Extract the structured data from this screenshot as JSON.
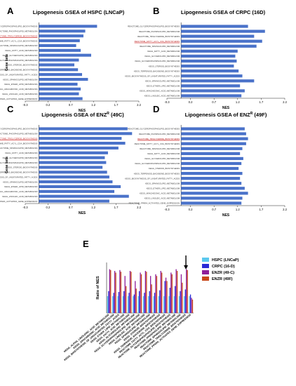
{
  "chart_data": [
    {
      "panel": "A",
      "type": "bar",
      "orientation": "horizontal",
      "title": "Lipogenesis GSEA of HSPC (LNCaP)",
      "xlabel": "NES",
      "ylabel": "Gene sets",
      "xlim": [
        -0.3,
        2.2
      ],
      "xticks": [
        "-0.3",
        "0.2",
        "0.7",
        "1.2",
        "1.7",
        "2.2"
      ],
      "categories": [
        "REACTOME_GLYCEROPHOSPHOLIPID_BIOSYNTHESIS",
        "REACTOME_PHOSPHOLIPID_METABOLISM",
        "REACTOME_TRIGLYCERIDE_BIOSYNTHESIS",
        "REACTOME_FATTY_ACYL_COA_BIOSYNTHESIS",
        "REACTOME_SPHINGOLIPID_METABOLISM",
        "KEGG_FATTY_ACID_METABOLISM",
        "KEGG_GLYCEROLIPID_METABOLISM",
        "KEGG_GLYCEROPHOSPHOLIPID_METABOLISM",
        "KEGG_STEROID_BIOSYNTHESIS",
        "KEGG_TERPENOID_BACKBONE_BIOSYNTHESIS",
        "KEGG_BIOSYNTHESIS_OF_UNSATURATED_FATTY_ACIDS",
        "KEGG_SPHINGOLIPID_METABOLISM",
        "KEGG_ETHER_LIPID_METABOLISM",
        "KEGG_ARACHIDONIC_ACID_METABOLISM",
        "KEGG_LINOLEIC_ACID_METABOLISM",
        "REACTOME_PPARA_ACTIVATES_GENE_EXPRESSION"
      ],
      "values": [
        1.28,
        1.02,
        0.98,
        0.9,
        0.82,
        0.92,
        1.15,
        0.88,
        0.78,
        0.86,
        0.95,
        1.08,
        0.85,
        0.92,
        0.88,
        0.96
      ],
      "highlighted_category_index": 2,
      "bar_color": "#4a72c9",
      "highlight_color": "#d23a3a"
    },
    {
      "panel": "B",
      "type": "bar",
      "orientation": "horizontal",
      "title": "Lipogenesis GSEA of CRPC (16D)",
      "xlabel": "NES",
      "ylabel": "",
      "xlim": [
        -0.3,
        2.2
      ],
      "xticks": [
        "-0.3",
        "0.2",
        "0.7",
        "1.2",
        "1.7",
        "2.2"
      ],
      "categories": [
        "REACTOME_GLYCEROPHOSPHOLIPID_BIOSYNTHESIS",
        "REACTOME_PHOSPHOLIPID_METABOLISM",
        "REACTOME_TRIGLYCERIDE_BIOSYNTHESIS",
        "REACTOME_FATTY_ACYL_COA_BIOSYNTHESIS",
        "REACTOME_SPHINGOLIPID_METABOLISM",
        "KEGG_FATTY_ACID_METABOLISM",
        "KEGG_GLYCEROLIPID_METABOLISM",
        "KEGG_GLYCEROPHOSPHOLIPID_METABOLISM",
        "KEGG_STEROID_BIOSYNTHESIS",
        "KEGG_TERPENOID_BACKBONE_BIOSYNTHESIS",
        "KEGG_BIOSYNTHESIS_OF_UNSATURATED_FATTY_ACIDS",
        "KEGG_SPHINGOLIPID_METABOLISM",
        "KEGG_ETHER_LIPID_METABOLISM",
        "KEGG_ARACHIDONIC_ACID_METABOLISM",
        "KEGG_LINOLEIC_ACID_METABOLISM"
      ],
      "values": [
        1.42,
        1.78,
        1.55,
        1.72,
        1.6,
        1.2,
        1.15,
        1.18,
        1.12,
        1.22,
        1.3,
        1.55,
        1.25,
        1.35,
        1.28
      ],
      "highlighted_category_index": 3,
      "bar_color": "#4a72c9",
      "highlight_color": "#d23a3a"
    },
    {
      "panel": "C",
      "type": "bar",
      "orientation": "horizontal",
      "title": "Lipogenesis GSEA of ENZR (49C)",
      "xlabel": "NES",
      "ylabel": "Gene sets",
      "xlim": [
        -0.3,
        2.2
      ],
      "xticks": [
        "-0.3",
        "0.2",
        "0.7",
        "1.2",
        "1.7",
        "2.2"
      ],
      "categories": [
        "REACTOME_GLYCEROPHOSPHOLIPID_BIOSYNTHESIS",
        "REACTOME_PHOSPHOLIPID_METABOLISM",
        "REACTOME_TRIGLYCERIDE_BIOSYNTHESIS",
        "REACTOME_FATTY_ACYL_COA_BIOSYNTHESIS",
        "REACTOME_SPHINGOLIPID_METABOLISM",
        "KEGG_FATTY_ACID_METABOLISM",
        "KEGG_GLYCEROLIPID_METABOLISM",
        "KEGG_GLYCEROPHOSPHOLIPID_METABOLISM",
        "KEGG_STEROID_BIOSYNTHESIS",
        "KEGG_TERPENOID_BACKBONE_BIOSYNTHESIS",
        "KEGG_BIOSYNTHESIS_OF_UNSATURATED_FATTY_ACIDS",
        "KEGG_SPHINGOLIPID_METABOLISM",
        "KEGG_ETHER_LIPID_METABOLISM",
        "KEGG_ARACHIDONIC_ACID_METABOLISM",
        "KEGG_LINOLEIC_ACID_METABOLISM",
        "REACTOME_PPARA_ACTIVATES_GENE_EXPRESSION"
      ],
      "values": [
        1.95,
        2.05,
        1.82,
        1.9,
        1.75,
        1.52,
        1.45,
        1.48,
        1.4,
        1.5,
        1.55,
        1.62,
        1.8,
        1.66,
        1.98,
        1.55
      ],
      "highlighted_category_index": 2,
      "bar_color": "#4a72c9",
      "highlight_color": "#d23a3a"
    },
    {
      "panel": "D",
      "type": "bar",
      "orientation": "horizontal",
      "title": "Lipogenesis GSEA of ENZR (49F)",
      "xlabel": "NES",
      "ylabel": "",
      "xlim": [
        -0.3,
        2.2
      ],
      "xticks": [
        "-0.3",
        "0.2",
        "0.7",
        "1.2",
        "1.7",
        "2.2"
      ],
      "categories": [
        "REACTOME_GLYCEROPHOSPHOLIPID_BIOSYNTHESIS",
        "REACTOME_PHOSPHOLIPID_METABOLISM",
        "REACTOME_TRIGLYCERIDE_BIOSYNTHESIS",
        "REACTOME_FATTY_ACYL_COA_BIOSYNTHESIS",
        "REACTOME_SPHINGOLIPID_METABOLISM",
        "KEGG_FATTY_ACID_METABOLISM",
        "KEGG_GLYCEROLIPID_METABOLISM",
        "KEGG_GLYCEROPHOSPHOLIPID_METABOLISM",
        "KEGG_STEROID_BIOSYNTHESIS",
        "KEGG_TERPENOID_BACKBONE_BIOSYNTHESIS",
        "KEGG_BIOSYNTHESIS_OF_UNSATURATED_FATTY_ACIDS",
        "KEGG_SPHINGOLIPID_METABOLISM",
        "KEGG_ETHER_LIPID_METABOLISM",
        "KEGG_ARACHIDONIC_ACID_METABOLISM",
        "KEGG_LINOLEIC_ACID_METABOLISM",
        "REACTOME_PPARA_ACTIVATES_GENE_EXPRESSION"
      ],
      "values": [
        1.35,
        1.38,
        1.42,
        1.38,
        1.3,
        1.25,
        1.32,
        1.28,
        1.22,
        1.3,
        1.25,
        1.28,
        1.35,
        1.42,
        1.3,
        1.28
      ],
      "highlighted_category_index": 2,
      "bar_color": "#4a72c9",
      "highlight_color": "#d23a3a"
    },
    {
      "panel": "E",
      "type": "bar",
      "orientation": "vertical",
      "title": "",
      "xlabel": "",
      "ylabel": "Ratio of NES",
      "ylim": [
        0,
        3
      ],
      "categories": [
        "KEGG_ALPHA_LINOLENIC_ACID_METABOLISM",
        "KEGG_ARACHIDONIC_ACID_METABOLISM",
        "KEGG_BIOSYNTHESIS_OF_UNSATURATED_FATTY_ACIDS",
        "KEGG_ETHER_LIPID_METABOLISM",
        "KEGG_FATTY_ACID_METABOLISM",
        "KEGG_GLYCEROLIPID_METABOLISM",
        "KEGG_GLYCEROPHOSPHOLIPID_METABOLISM",
        "KEGG_LINOLEIC_ACID_METABOLISM",
        "KEGG_SPHINGOLIPID_METABOLISM",
        "KEGG_STEROID_BIOSYNTHESIS",
        "KEGG_TERPENOID_BACKBONE_BIOSYNTHESIS",
        "REACTOME_FATTY_ACYL_COA_BIOSYNTHESIS",
        "REACTOME_GLYCEROPHOSPHOLIPID_BIOSYNTHESIS",
        "REACTOME_PHOSPHOLIPID_METABOLISM",
        "REACTOME_SPHINGOLIPID_METABOLISM",
        "REACTOME_TRIGLYCERIDE_BIOSYNTHESIS",
        "REACTOME_PPARA_ACTIVATES_GENE_EXPRESSION"
      ],
      "series": [
        {
          "name": "HSPC (LNCaP)",
          "color": "#5bc8ee",
          "values": [
            1,
            1,
            1,
            1,
            1,
            1,
            1,
            1,
            1,
            1,
            1,
            1,
            1,
            1,
            1,
            1,
            1
          ]
        },
        {
          "name": "CRPC (16-D)",
          "color": "#2a2ad6",
          "values": [
            1.3,
            1.2,
            1.25,
            1.3,
            1.2,
            1.1,
            1.3,
            1.2,
            1.3,
            1.2,
            1.35,
            1.9,
            1.5,
            1.6,
            1.3,
            1.4,
            1.1
          ]
        },
        {
          "name": "ENZR (49-C)",
          "color": "#8e1f9a",
          "values": [
            2.6,
            2.5,
            2.55,
            2.2,
            2.5,
            1.9,
            2.4,
            2.5,
            2.2,
            2.3,
            2.5,
            2.1,
            2.4,
            2.6,
            2.3,
            2.6,
            0.9
          ]
        },
        {
          "name": "ENZR (49F)",
          "color": "#c8481b",
          "values": [
            2.55,
            2.4,
            2.45,
            1.6,
            2.45,
            1.45,
            2.3,
            2.45,
            1.7,
            2.2,
            2.4,
            1.9,
            2.3,
            2.5,
            1.8,
            2.55,
            0.8
          ]
        }
      ],
      "legend_position": "right",
      "annotation": "arrow above REACTOME_TRIGLYCERIDE_BIOSYNTHESIS",
      "arrow_category_index": 15
    }
  ],
  "labels": {
    "panel_a": "A",
    "panel_b": "B",
    "panel_c": "C",
    "panel_d": "D",
    "panel_e": "E"
  }
}
